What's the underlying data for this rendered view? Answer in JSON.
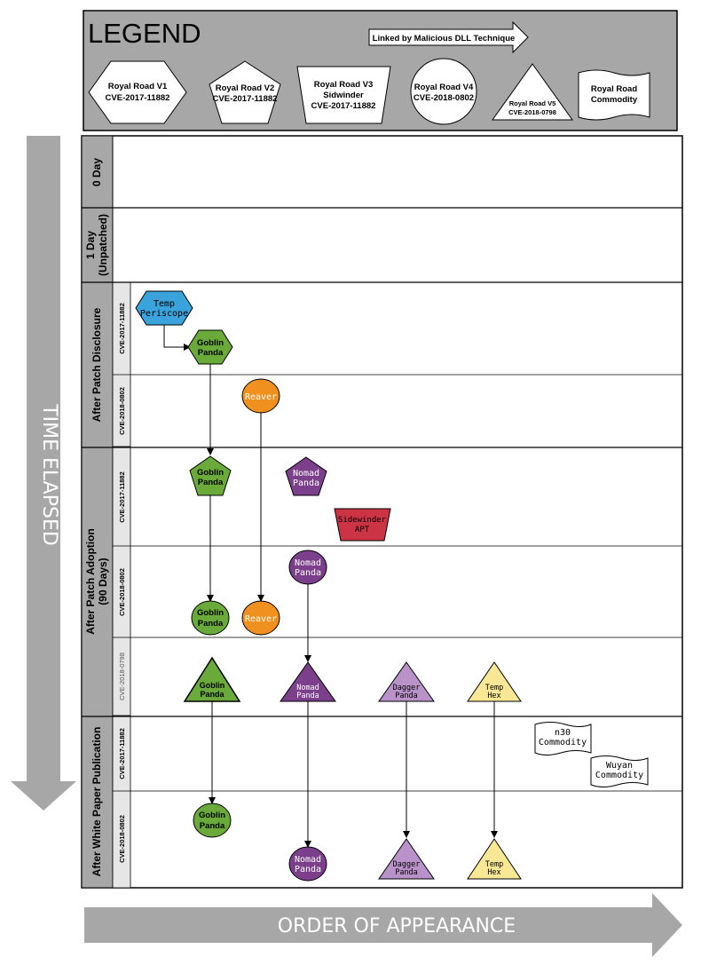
{
  "legend": {
    "title": "LEGEND",
    "link_note": "Linked by Malicious DLL Technique",
    "items": [
      {
        "line1": "Royal Road V1",
        "line2": "CVE-2017-11882",
        "line3": ""
      },
      {
        "line1": "Royal Road V2",
        "line2": "CVE-2017-11882",
        "line3": ""
      },
      {
        "line1": "Royal Road  V3",
        "line2": "Sidwinder",
        "line3": "CVE-2017-11882"
      },
      {
        "line1": "Royal Road V4",
        "line2": "CVE-2018-0802",
        "line3": ""
      },
      {
        "line1": "Royal Road V5",
        "line2": "CVE-2018-0798",
        "line3": ""
      },
      {
        "line1": "Royal Road",
        "line2": "Commodity",
        "line3": ""
      }
    ]
  },
  "axes": {
    "time": "TIME ELAPSED",
    "order": "ORDER OF APPEARANCE"
  },
  "rows": {
    "zero_day": "0 Day",
    "one_day_line1": "1 Day",
    "one_day_line2": "(Unpatched)",
    "disclosure": "After Patch Disclosure",
    "adoption_line1": "After Patch Adoption",
    "adoption_line2": "(90 Days)",
    "whitepaper": "After White Paper Publication"
  },
  "cves": {
    "c17": "CVE-2017-11882",
    "c18": "CVE-2018-0802",
    "c1798": "CVE-2018-0798"
  },
  "actors": {
    "temp_periscope": [
      "Temp",
      "Periscope"
    ],
    "goblin_panda": [
      "Goblin",
      "Panda"
    ],
    "reaver": [
      "Reaver"
    ],
    "nomad_panda": [
      "Nomad",
      "Panda"
    ],
    "sidewinder_apt": [
      "Sidewinder",
      "APT"
    ],
    "dagger_panda": [
      "Dagger",
      "Panda"
    ],
    "temp_hex": [
      "Temp",
      "Hex"
    ],
    "n30_commodity": [
      "n30",
      "Commodity"
    ],
    "wuyan_commodity": [
      "Wuyan",
      "Commodity"
    ]
  },
  "colors": {
    "green": "#6aaa3a",
    "orange": "#f0901e",
    "purple": "#7c3f8c",
    "light_purple": "#b892c8",
    "blue": "#3aa3dc",
    "red": "#cc3344",
    "yellow": "#f8e795",
    "gray": "#a5a5a5"
  }
}
